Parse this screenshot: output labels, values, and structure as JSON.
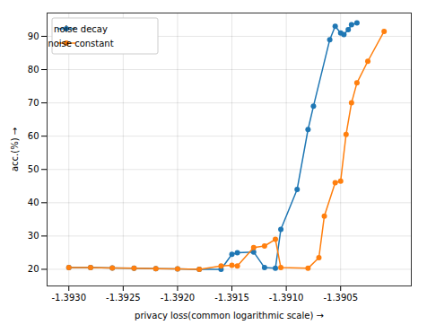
{
  "chart_data": {
    "type": "line",
    "xlabel": "privacy loss(common logarithmic scale)",
    "ylabel": "acc.(%)",
    "xlim": [
      -1.3932,
      -1.38985
    ],
    "ylim": [
      15,
      97
    ],
    "xticks": [
      {
        "value": -1.393,
        "label": "-1.3930"
      },
      {
        "value": -1.3925,
        "label": "-1.3925"
      },
      {
        "value": -1.392,
        "label": "-1.3920"
      },
      {
        "value": -1.3915,
        "label": "-1.3915"
      },
      {
        "value": -1.391,
        "label": "-1.3910"
      },
      {
        "value": -1.3905,
        "label": "-1.3905"
      }
    ],
    "yticks": [
      20,
      30,
      40,
      50,
      60,
      70,
      80,
      90
    ],
    "grid": true,
    "legend": "upper left",
    "marker": "circle",
    "series": [
      {
        "name": "noise decay",
        "color": "#1f77b4",
        "x": [
          -1.393,
          -1.3928,
          -1.3926,
          -1.3924,
          -1.3922,
          -1.392,
          -1.3918,
          -1.3916,
          -1.3915,
          -1.39145,
          -1.3913,
          -1.3912,
          -1.3911,
          -1.39105,
          -1.3909,
          -1.3908,
          -1.39075,
          -1.3906,
          -1.39055,
          -1.3905,
          -1.39047,
          -1.39043,
          -1.3904,
          -1.39035
        ],
        "values": [
          20.5,
          20.5,
          20.4,
          20.3,
          20.2,
          20.1,
          20.0,
          20.0,
          24.5,
          25.0,
          25.2,
          20.5,
          20.3,
          32.0,
          44.0,
          62.0,
          69.0,
          89.0,
          93.0,
          91.0,
          90.5,
          92.0,
          93.5,
          94.0
        ]
      },
      {
        "name": "noise constant",
        "color": "#ff7f0e",
        "x": [
          -1.393,
          -1.3928,
          -1.3926,
          -1.3924,
          -1.3922,
          -1.392,
          -1.3918,
          -1.3916,
          -1.3915,
          -1.39145,
          -1.3913,
          -1.3912,
          -1.3911,
          -1.39105,
          -1.3908,
          -1.3907,
          -1.39065,
          -1.39055,
          -1.3905,
          -1.39045,
          -1.3904,
          -1.39035,
          -1.39025,
          -1.3901
        ],
        "values": [
          20.5,
          20.5,
          20.4,
          20.3,
          20.2,
          20.1,
          20.0,
          21.0,
          21.2,
          21.0,
          26.5,
          27.0,
          29.0,
          20.5,
          20.3,
          23.5,
          36.0,
          46.0,
          46.5,
          60.5,
          70.0,
          76.0,
          82.5,
          91.5
        ]
      }
    ]
  }
}
